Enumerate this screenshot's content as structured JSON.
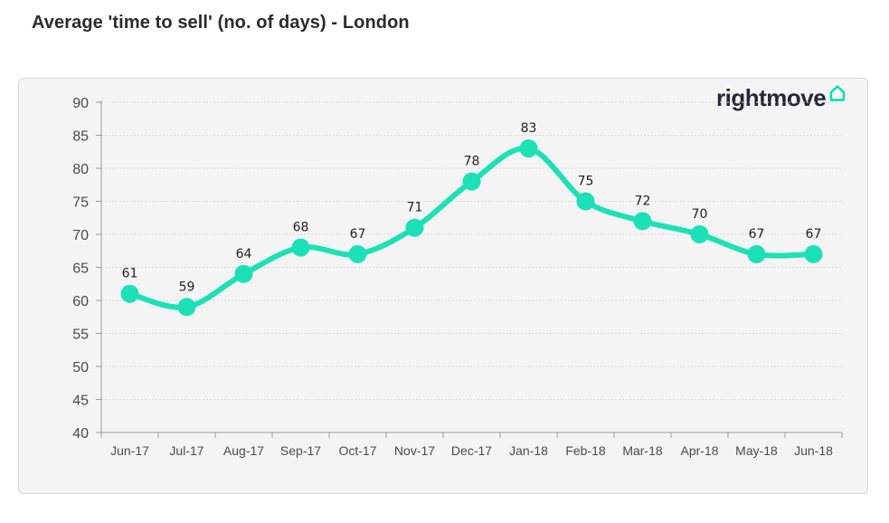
{
  "title": "Average 'time to sell' (no. of days) - London",
  "brand": {
    "name": "rightmove",
    "icon": "house-icon",
    "accent_color": "#00deb6"
  },
  "chart_data": {
    "type": "line",
    "categories": [
      "Jun-17",
      "Jul-17",
      "Aug-17",
      "Sep-17",
      "Oct-17",
      "Nov-17",
      "Dec-17",
      "Jan-18",
      "Feb-18",
      "Mar-18",
      "Apr-18",
      "May-18",
      "Jun-18"
    ],
    "values": [
      61,
      59,
      64,
      68,
      67,
      71,
      78,
      83,
      75,
      72,
      70,
      67,
      67
    ],
    "data_labels": [
      "61",
      "59",
      "64",
      "68",
      "67",
      "71",
      "78",
      "83",
      "75",
      "72",
      "70",
      "67",
      "67"
    ],
    "y_ticks": [
      "90",
      "85",
      "80",
      "75",
      "70",
      "65",
      "60",
      "55",
      "50",
      "45",
      "40"
    ],
    "ylim": [
      40,
      90
    ],
    "y_step": 5,
    "line_color": "#1de1b6",
    "xlabel": "",
    "ylabel": "",
    "grid": true,
    "legend": false
  }
}
